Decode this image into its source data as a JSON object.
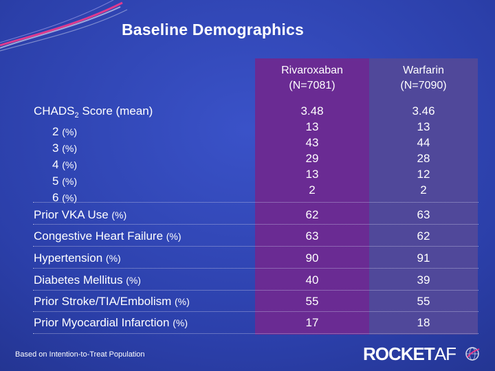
{
  "title": "Baseline Demographics",
  "columns": [
    {
      "name": "Rivaroxaban",
      "n": "(N=7081)"
    },
    {
      "name": "Warfarin",
      "n": "(N=7090)"
    }
  ],
  "chads": {
    "label_main": "CHADS",
    "label_sub": "2",
    "label_rest": " Score (mean)",
    "sub_rows": [
      {
        "label": "2",
        "unit": "(%)"
      },
      {
        "label": "3",
        "unit": "(%)"
      },
      {
        "label": "4",
        "unit": "(%)"
      },
      {
        "label": "5",
        "unit": "(%)"
      },
      {
        "label": "6",
        "unit": "(%)"
      }
    ],
    "rivaroxaban": [
      "3.48",
      "13",
      "43",
      "29",
      "13",
      "2"
    ],
    "warfarin": [
      "3.46",
      "13",
      "44",
      "28",
      "12",
      "2"
    ]
  },
  "rows": [
    {
      "label": "Prior VKA Use",
      "unit": "(%)",
      "rivaroxaban": "62",
      "warfarin": "63"
    },
    {
      "label": "Congestive Heart Failure",
      "unit": "(%)",
      "rivaroxaban": "63",
      "warfarin": "62"
    },
    {
      "label": "Hypertension",
      "unit": "(%)",
      "rivaroxaban": "90",
      "warfarin": "91"
    },
    {
      "label": "Diabetes Mellitus",
      "unit": "(%)",
      "rivaroxaban": "40",
      "warfarin": "39"
    },
    {
      "label": "Prior Stroke/TIA/Embolism",
      "unit": "(%)",
      "rivaroxaban": "55",
      "warfarin": "55"
    },
    {
      "label": "Prior Myocardial Infarction",
      "unit": "(%)",
      "rivaroxaban": "17",
      "warfarin": "18"
    }
  ],
  "footnote": "Based on Intention-to-Treat Population",
  "logo": {
    "part1": "ROCKET",
    "part2": "AF"
  },
  "colors": {
    "rivaroxaban_column": "#6a2b93",
    "warfarin_column": "#50489a",
    "background": "#2b3fa9",
    "swoosh": "#e83a8c"
  }
}
